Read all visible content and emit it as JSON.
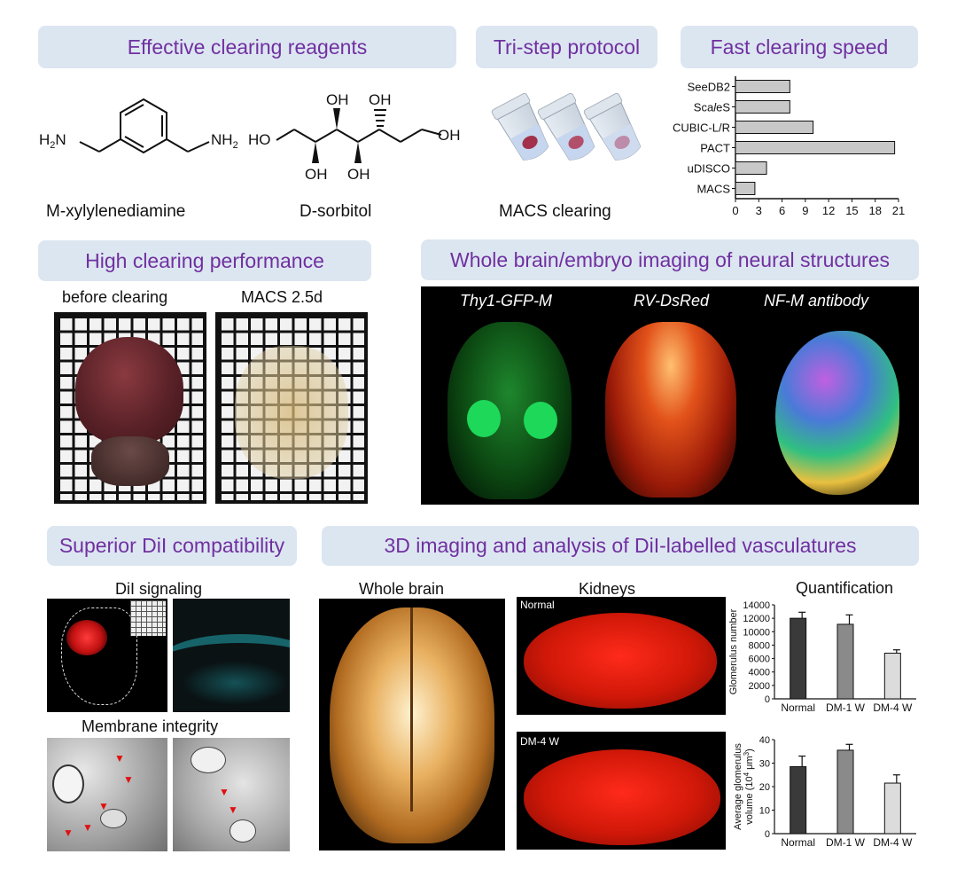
{
  "sections": {
    "reagents": "Effective clearing reagents",
    "protocol": "Tri-step protocol",
    "speed": "Fast clearing speed",
    "performance": "High clearing performance",
    "whole_brain": "Whole brain/embryo imaging of neural structures",
    "dil": "Superior DiI compatibility",
    "vasculature": "3D imaging and analysis of DiI-labelled vasculatures"
  },
  "reagents": {
    "compound1_name": "M-xylylenediamine",
    "compound2_name": "D-sorbitol",
    "nh2": "NH",
    "h2n": "H",
    "oh": "OH",
    "ho": "HO"
  },
  "protocol": {
    "caption": "MACS clearing"
  },
  "performance": {
    "before": "before clearing",
    "after": "MACS 2.5d"
  },
  "imaging": {
    "thy1": "Thy1-GFP-M",
    "rv": "RV-DsRed",
    "nfm": "NF-M antibody"
  },
  "dil": {
    "signaling": "DiI signaling",
    "membrane": "Membrane integrity"
  },
  "vasc": {
    "whole_brain": "Whole brain",
    "kidneys": "Kidneys",
    "normal": "Normal",
    "dm4w": "DM-4 W",
    "quant": "Quantification"
  },
  "chart_data": [
    {
      "type": "bar",
      "orientation": "horizontal",
      "categories": [
        "SeeDB2",
        "ScaleS",
        "CUBIC-L/R",
        "PACT",
        "uDISCO",
        "MACS"
      ],
      "category_labels": [
        [
          "SeeDB2",
          ""
        ],
        [
          "Sca",
          "l",
          "eS"
        ],
        [
          "CUBIC-L/R"
        ],
        [
          "PACT"
        ],
        [
          "uDISCO"
        ],
        [
          "MACS"
        ]
      ],
      "values": [
        7,
        7,
        10,
        20.5,
        4,
        2.5
      ],
      "xlim": [
        0,
        21
      ],
      "xticks": [
        0,
        3,
        6,
        9,
        12,
        15,
        18,
        21
      ],
      "bar_color": "#c8c8c8"
    },
    {
      "type": "bar",
      "categories": [
        "Normal",
        "DM-1 W",
        "DM-4 W"
      ],
      "values": [
        12000,
        11100,
        6800
      ],
      "errors": [
        900,
        1400,
        500
      ],
      "ylabel": "Glomerulus number",
      "ylim": [
        0,
        14000
      ],
      "yticks": [
        0,
        2000,
        4000,
        6000,
        8000,
        10000,
        12000,
        14000
      ],
      "colors": [
        "#3a3a3a",
        "#8a8a8a",
        "#dcdcdc"
      ]
    },
    {
      "type": "bar",
      "categories": [
        "Normal",
        "DM-1 W",
        "DM-4 W"
      ],
      "values": [
        28.5,
        35.5,
        21.5
      ],
      "errors": [
        4.5,
        2.5,
        3.5
      ],
      "ylabel": "Average glomerulus",
      "ylabel2": "volume (10",
      "ylabel_sup": "4",
      "ylabel_unit": " μm",
      "ylabel_sup2": "3",
      "ylabel_end": ")",
      "ylim": [
        0,
        40
      ],
      "yticks": [
        0,
        10,
        20,
        30,
        40
      ],
      "colors": [
        "#3a3a3a",
        "#8a8a8a",
        "#dcdcdc"
      ]
    }
  ]
}
